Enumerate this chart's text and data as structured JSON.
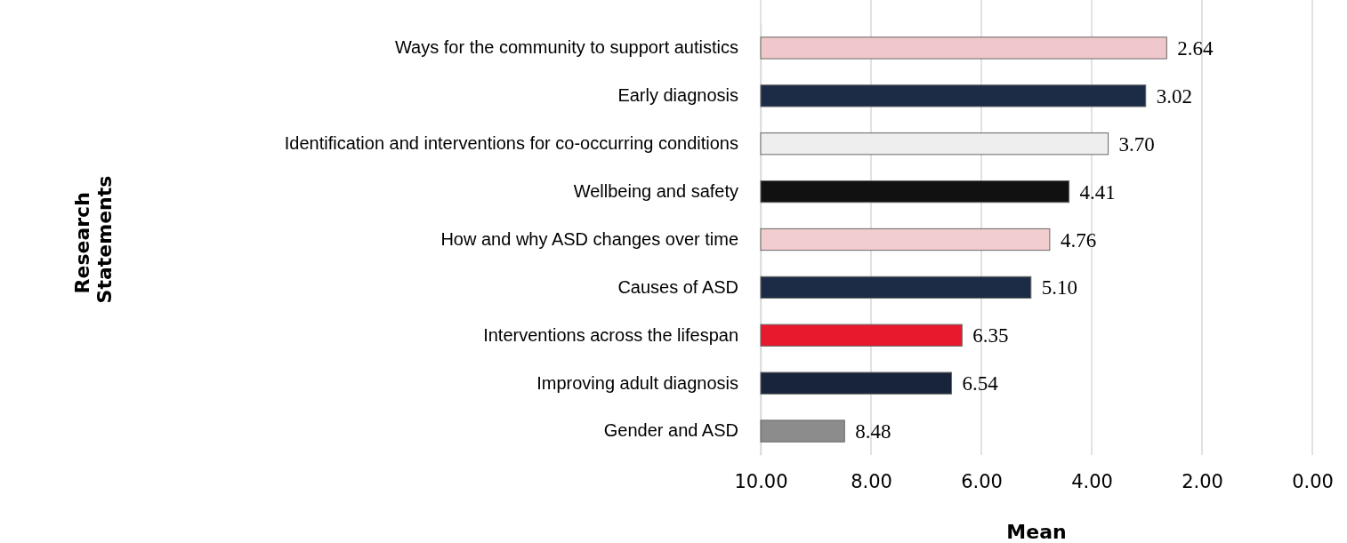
{
  "chart_data": {
    "type": "bar",
    "orientation": "horizontal",
    "categories": [
      "Ways for the community to support autistics",
      "Early diagnosis",
      "Identification and interventions for co-occurring conditions ",
      "Wellbeing and safety",
      "How and why ASD changes over time",
      "Causes of ASD",
      "Interventions across the lifespan",
      "Improving adult diagnosis",
      "Gender and ASD"
    ],
    "values": [
      -7.36,
      -6.98,
      -6.3,
      -5.59,
      -5.24,
      -4.9,
      -3.65,
      -3.46,
      -1.52
    ],
    "base": [
      10,
      10,
      10,
      10,
      10,
      10,
      10,
      10,
      10
    ],
    "colors": [
      "#f0c8cb",
      "#1c2c46",
      "#eeeeee",
      "#111111",
      "#f2cdd0",
      "#1c2c46",
      "#e8192c",
      "#18243a",
      "#8c8c8c"
    ],
    "value_labels": [
      "2.64",
      "3.02",
      "3.70",
      "4.41",
      "4.76",
      "5.10",
      "6.35",
      "6.54",
      "8.48"
    ],
    "xlim": [
      10,
      0
    ],
    "xticks": [
      {
        "value": 10,
        "label": "10.00"
      },
      {
        "value": 8,
        "label": "8.00"
      },
      {
        "value": 6,
        "label": "6.00"
      },
      {
        "value": 4,
        "label": "4.00"
      },
      {
        "value": 2,
        "label": "2.00"
      },
      {
        "value": 0,
        "label": "0.00"
      }
    ],
    "grid": "x",
    "xlabel": "Mean",
    "annotations": [
      "Research Statements"
    ]
  }
}
